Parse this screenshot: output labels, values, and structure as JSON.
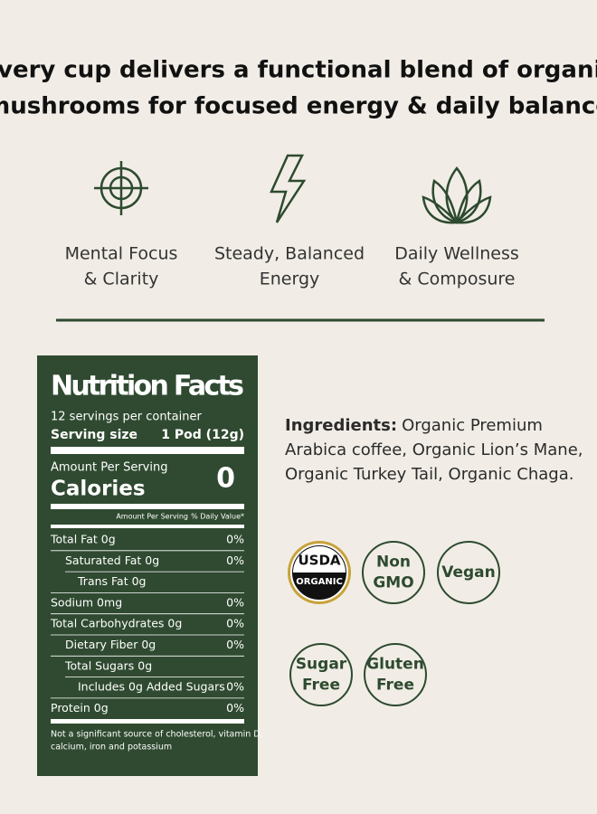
{
  "header": {
    "lines": [
      "Every cup delivers a functional blend of organic",
      "mushrooms for focused energy & daily balance"
    ]
  },
  "benefits": [
    {
      "lines": [
        "Mental Focus",
        "& Clarity"
      ]
    },
    {
      "lines": [
        "Steady, Balanced",
        "Energy"
      ]
    },
    {
      "lines": [
        "Daily Wellness",
        "& Composure"
      ]
    }
  ],
  "nutrition": {
    "title": "Nutrition Facts",
    "servings": "12 servings per container",
    "serving_size_label": "Serving size",
    "serving_size_value": "1 Pod (12g)",
    "amount_per_serving": "Amount Per Serving",
    "calories_label": "Calories",
    "calories_value": 0,
    "column_header_left": "Amount Per Serving",
    "column_header_right": "% Daily Value*",
    "rows": [
      {
        "label": "Total Fat 0g",
        "dv": "0%"
      },
      {
        "label": "Saturated Fat 0g",
        "dv": "0%"
      },
      {
        "label": "Trans Fat 0g",
        "dv": null
      },
      {
        "label": "Sodium 0mg",
        "dv": "0%"
      },
      {
        "label": "Total Carbohydrates 0g",
        "dv": "0%"
      },
      {
        "label": "Dietary Fiber 0g",
        "dv": "0%"
      },
      {
        "label": "Total Sugars 0g",
        "dv": null
      },
      {
        "label": "Includes 0g Added Sugars",
        "dv": "0%"
      },
      {
        "label": "Protein 0g",
        "dv": "0%"
      }
    ],
    "footnote": [
      "Not a significant source of cholesterol, vitamin D,",
      "calcium, iron and potassium"
    ]
  },
  "ingredients": {
    "label": "Ingredients:",
    "lines": [
      "Organic Premium",
      "Arabica coffee, Organic Lion’s Mane,",
      "Organic Turkey Tail, Organic Chaga."
    ]
  },
  "badges": [
    {
      "lines": [
        "USDA",
        "ORGANIC"
      ]
    },
    {
      "lines": [
        "Non",
        "GMO"
      ]
    },
    {
      "lines": [
        "Vegan"
      ]
    },
    {
      "lines": [
        "Sugar",
        "Free"
      ]
    },
    {
      "lines": [
        "Gluten",
        "Free"
      ]
    }
  ]
}
